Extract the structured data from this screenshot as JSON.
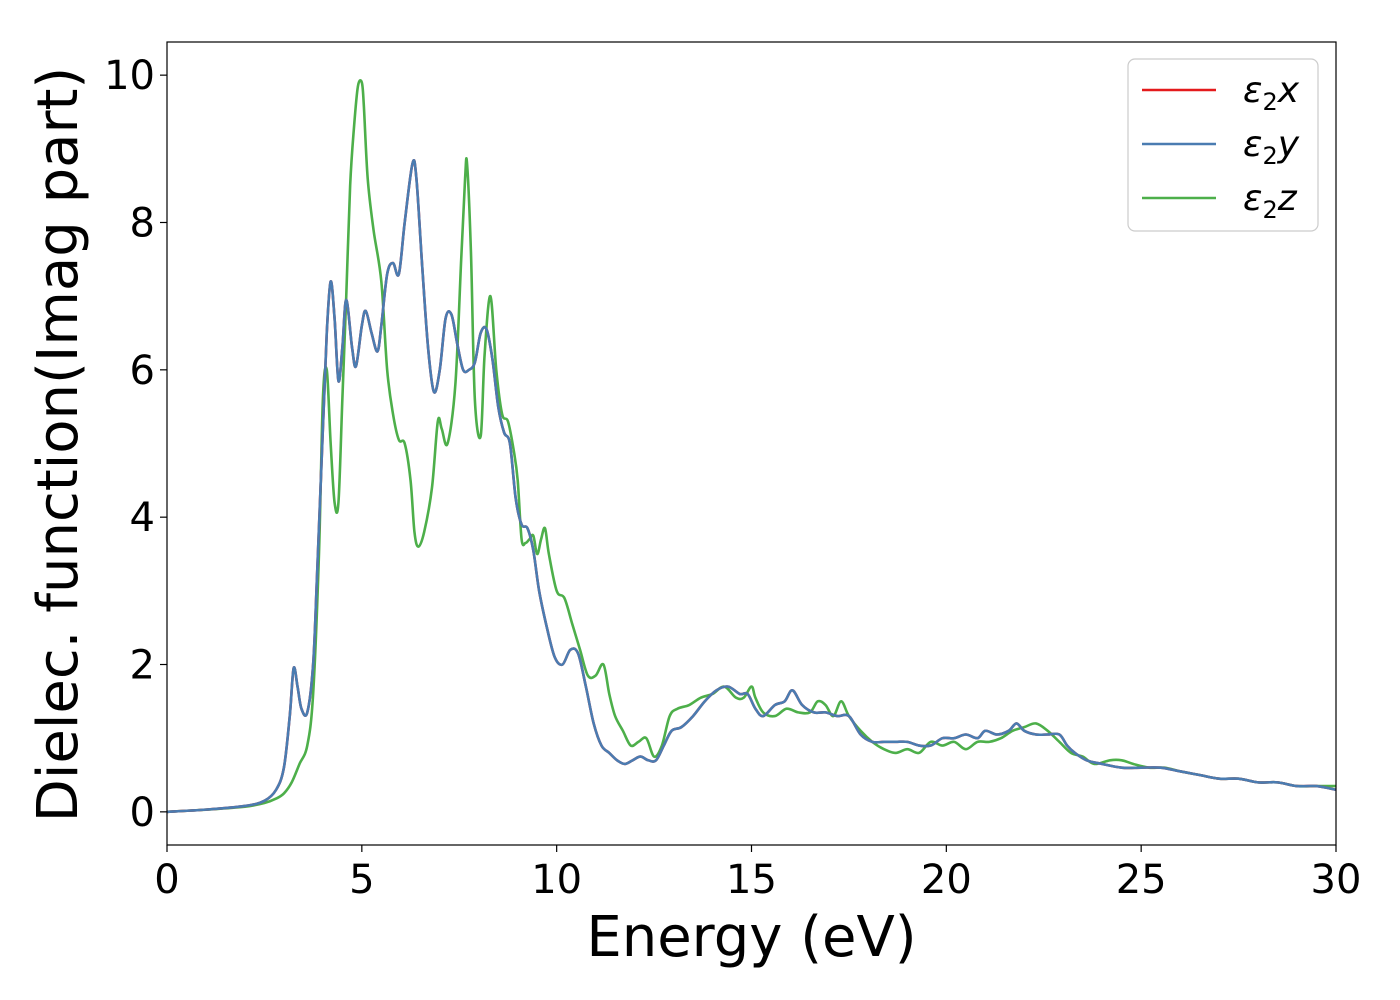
{
  "chart_data": {
    "type": "line",
    "xlabel": "Energy (eV)",
    "ylabel": "Dielec. function(Imag part)",
    "xlim": [
      0,
      30
    ],
    "ylim": [
      -0.45,
      10.45
    ],
    "xticks": [
      0,
      5,
      10,
      15,
      20,
      25,
      30
    ],
    "yticks": [
      0,
      2,
      4,
      6,
      8,
      10
    ],
    "grid": false,
    "legend_position": "top-right",
    "series": [
      {
        "name": "ε₂x",
        "legend_base": "ε",
        "legend_sub": "2",
        "legend_var": "x",
        "color": "#e41a1c",
        "x": [
          0,
          1,
          2,
          2.5,
          2.8,
          3.0,
          3.15,
          3.25,
          3.35,
          3.45,
          3.6,
          3.75,
          3.85,
          4.0,
          4.1,
          4.2,
          4.3,
          4.4,
          4.5,
          4.6,
          4.75,
          4.85,
          5.0,
          5.1,
          5.25,
          5.4,
          5.5,
          5.65,
          5.8,
          5.95,
          6.1,
          6.3,
          6.4,
          6.55,
          6.7,
          6.85,
          7.0,
          7.15,
          7.3,
          7.45,
          7.6,
          7.75,
          7.9,
          8.05,
          8.2,
          8.35,
          8.5,
          8.65,
          8.8,
          8.95,
          9.1,
          9.25,
          9.4,
          9.55,
          9.75,
          9.95,
          10.15,
          10.35,
          10.55,
          10.75,
          10.95,
          11.15,
          11.35,
          11.55,
          11.75,
          11.95,
          12.15,
          12.35,
          12.55,
          12.75,
          12.95,
          13.2,
          13.5,
          13.8,
          14.1,
          14.4,
          14.7,
          14.9,
          15.1,
          15.3,
          15.6,
          15.85,
          16.05,
          16.3,
          16.6,
          16.9,
          17.2,
          17.5,
          17.8,
          18.1,
          18.4,
          18.7,
          19.0,
          19.3,
          19.6,
          19.9,
          20.2,
          20.5,
          20.8,
          21.0,
          21.3,
          21.6,
          21.8,
          22.0,
          22.3,
          22.6,
          22.9,
          23.1,
          23.3,
          23.6,
          24.0,
          24.5,
          25.0,
          25.5,
          26.0,
          26.5,
          27.0,
          27.5,
          28.0,
          28.5,
          29.0,
          29.5,
          30.0
        ],
        "values": [
          0.0,
          0.03,
          0.08,
          0.15,
          0.3,
          0.6,
          1.3,
          1.95,
          1.7,
          1.4,
          1.35,
          2.0,
          3.2,
          5.2,
          6.5,
          7.2,
          6.7,
          5.85,
          6.3,
          6.95,
          6.3,
          6.05,
          6.6,
          6.8,
          6.5,
          6.25,
          6.6,
          7.3,
          7.45,
          7.3,
          8.0,
          8.8,
          8.6,
          7.4,
          6.3,
          5.7,
          6.0,
          6.7,
          6.75,
          6.35,
          6.0,
          6.0,
          6.1,
          6.5,
          6.55,
          6.15,
          5.5,
          5.15,
          5.0,
          4.25,
          3.9,
          3.85,
          3.55,
          3.0,
          2.5,
          2.1,
          2.0,
          2.2,
          2.15,
          1.7,
          1.2,
          0.9,
          0.8,
          0.7,
          0.65,
          0.7,
          0.75,
          0.7,
          0.7,
          0.9,
          1.1,
          1.15,
          1.3,
          1.5,
          1.65,
          1.7,
          1.6,
          1.6,
          1.4,
          1.3,
          1.45,
          1.5,
          1.65,
          1.45,
          1.35,
          1.35,
          1.3,
          1.3,
          1.05,
          0.95,
          0.95,
          0.95,
          0.95,
          0.9,
          0.9,
          1.0,
          1.0,
          1.05,
          1.0,
          1.1,
          1.05,
          1.1,
          1.2,
          1.1,
          1.05,
          1.05,
          1.05,
          0.9,
          0.8,
          0.7,
          0.65,
          0.6,
          0.6,
          0.6,
          0.55,
          0.5,
          0.45,
          0.45,
          0.4,
          0.4,
          0.35,
          0.35,
          0.3
        ]
      },
      {
        "name": "ε₂y",
        "legend_base": "ε",
        "legend_sub": "2",
        "legend_var": "y",
        "color": "#4a7cb1",
        "x": [
          0,
          1,
          2,
          2.5,
          2.8,
          3.0,
          3.15,
          3.25,
          3.35,
          3.45,
          3.6,
          3.75,
          3.85,
          4.0,
          4.1,
          4.2,
          4.3,
          4.4,
          4.5,
          4.6,
          4.75,
          4.85,
          5.0,
          5.1,
          5.25,
          5.4,
          5.5,
          5.65,
          5.8,
          5.95,
          6.1,
          6.3,
          6.4,
          6.55,
          6.7,
          6.85,
          7.0,
          7.15,
          7.3,
          7.45,
          7.6,
          7.75,
          7.9,
          8.05,
          8.2,
          8.35,
          8.5,
          8.65,
          8.8,
          8.95,
          9.1,
          9.25,
          9.4,
          9.55,
          9.75,
          9.95,
          10.15,
          10.35,
          10.55,
          10.75,
          10.95,
          11.15,
          11.35,
          11.55,
          11.75,
          11.95,
          12.15,
          12.35,
          12.55,
          12.75,
          12.95,
          13.2,
          13.5,
          13.8,
          14.1,
          14.4,
          14.7,
          14.9,
          15.1,
          15.3,
          15.6,
          15.85,
          16.05,
          16.3,
          16.6,
          16.9,
          17.2,
          17.5,
          17.8,
          18.1,
          18.4,
          18.7,
          19.0,
          19.3,
          19.6,
          19.9,
          20.2,
          20.5,
          20.8,
          21.0,
          21.3,
          21.6,
          21.8,
          22.0,
          22.3,
          22.6,
          22.9,
          23.1,
          23.3,
          23.6,
          24.0,
          24.5,
          25.0,
          25.5,
          26.0,
          26.5,
          27.0,
          27.5,
          28.0,
          28.5,
          29.0,
          29.5,
          30.0
        ],
        "values": [
          0.0,
          0.03,
          0.08,
          0.15,
          0.3,
          0.6,
          1.3,
          1.95,
          1.7,
          1.4,
          1.35,
          2.0,
          3.2,
          5.2,
          6.5,
          7.2,
          6.7,
          5.85,
          6.3,
          6.95,
          6.3,
          6.05,
          6.6,
          6.8,
          6.5,
          6.25,
          6.6,
          7.3,
          7.45,
          7.3,
          8.0,
          8.8,
          8.6,
          7.4,
          6.3,
          5.7,
          6.0,
          6.7,
          6.75,
          6.35,
          6.0,
          6.0,
          6.1,
          6.5,
          6.55,
          6.15,
          5.5,
          5.15,
          5.0,
          4.25,
          3.9,
          3.85,
          3.55,
          3.0,
          2.5,
          2.1,
          2.0,
          2.2,
          2.15,
          1.7,
          1.2,
          0.9,
          0.8,
          0.7,
          0.65,
          0.7,
          0.75,
          0.7,
          0.7,
          0.9,
          1.1,
          1.15,
          1.3,
          1.5,
          1.65,
          1.7,
          1.6,
          1.6,
          1.4,
          1.3,
          1.45,
          1.5,
          1.65,
          1.45,
          1.35,
          1.35,
          1.3,
          1.3,
          1.05,
          0.95,
          0.95,
          0.95,
          0.95,
          0.9,
          0.9,
          1.0,
          1.0,
          1.05,
          1.0,
          1.1,
          1.05,
          1.1,
          1.2,
          1.1,
          1.05,
          1.05,
          1.05,
          0.9,
          0.8,
          0.7,
          0.65,
          0.6,
          0.6,
          0.6,
          0.55,
          0.5,
          0.45,
          0.45,
          0.4,
          0.4,
          0.35,
          0.35,
          0.3
        ]
      },
      {
        "name": "ε₂z",
        "legend_base": "ε",
        "legend_sub": "2",
        "legend_var": "z",
        "color": "#4daf4a",
        "x": [
          0,
          1,
          2,
          2.5,
          2.8,
          3.0,
          3.2,
          3.4,
          3.6,
          3.75,
          3.9,
          4.0,
          4.1,
          4.2,
          4.3,
          4.4,
          4.5,
          4.6,
          4.7,
          4.8,
          4.9,
          5.0,
          5.05,
          5.15,
          5.3,
          5.5,
          5.65,
          5.8,
          5.95,
          6.1,
          6.25,
          6.35,
          6.45,
          6.6,
          6.8,
          6.95,
          7.05,
          7.2,
          7.4,
          7.55,
          7.65,
          7.7,
          7.8,
          7.9,
          8.05,
          8.15,
          8.3,
          8.45,
          8.6,
          8.75,
          8.9,
          9.0,
          9.1,
          9.2,
          9.3,
          9.4,
          9.5,
          9.6,
          9.7,
          9.8,
          10.0,
          10.2,
          10.4,
          10.6,
          10.8,
          11.0,
          11.2,
          11.35,
          11.5,
          11.7,
          11.9,
          12.1,
          12.3,
          12.5,
          12.7,
          12.9,
          13.1,
          13.4,
          13.7,
          14.0,
          14.3,
          14.6,
          14.8,
          15.0,
          15.1,
          15.3,
          15.6,
          15.9,
          16.2,
          16.5,
          16.7,
          16.9,
          17.1,
          17.3,
          17.5,
          17.8,
          18.1,
          18.4,
          18.7,
          19.0,
          19.3,
          19.6,
          19.9,
          20.2,
          20.5,
          20.8,
          21.1,
          21.4,
          21.7,
          22.0,
          22.3,
          22.6,
          22.9,
          23.2,
          23.5,
          23.8,
          24.2,
          24.5,
          24.8,
          25.2,
          25.6,
          26.0,
          26.5,
          27.0,
          27.5,
          28.0,
          28.5,
          29.0,
          29.5,
          30.0
        ],
        "values": [
          0.0,
          0.03,
          0.07,
          0.12,
          0.18,
          0.25,
          0.4,
          0.65,
          0.9,
          1.6,
          3.5,
          5.6,
          6.0,
          5.0,
          4.2,
          4.2,
          5.6,
          7.0,
          8.5,
          9.3,
          9.85,
          9.9,
          9.6,
          8.6,
          7.9,
          7.2,
          6.0,
          5.4,
          5.05,
          5.0,
          4.5,
          3.8,
          3.6,
          3.8,
          4.4,
          5.3,
          5.2,
          5.0,
          5.8,
          7.5,
          8.6,
          8.8,
          7.6,
          5.6,
          5.1,
          6.2,
          7.0,
          6.0,
          5.4,
          5.3,
          4.9,
          4.5,
          3.7,
          3.65,
          3.7,
          3.75,
          3.5,
          3.7,
          3.85,
          3.5,
          3.0,
          2.9,
          2.55,
          2.2,
          1.85,
          1.85,
          2.0,
          1.6,
          1.3,
          1.1,
          0.9,
          0.95,
          1.0,
          0.75,
          0.9,
          1.3,
          1.4,
          1.45,
          1.55,
          1.6,
          1.7,
          1.55,
          1.55,
          1.7,
          1.55,
          1.35,
          1.3,
          1.4,
          1.35,
          1.35,
          1.5,
          1.45,
          1.3,
          1.5,
          1.3,
          1.1,
          0.95,
          0.85,
          0.8,
          0.85,
          0.8,
          0.95,
          0.9,
          0.95,
          0.85,
          0.95,
          0.95,
          1.0,
          1.1,
          1.15,
          1.2,
          1.1,
          0.95,
          0.8,
          0.75,
          0.65,
          0.7,
          0.7,
          0.65,
          0.6,
          0.6,
          0.55,
          0.5,
          0.45,
          0.45,
          0.4,
          0.4,
          0.35,
          0.35,
          0.35
        ]
      }
    ]
  }
}
